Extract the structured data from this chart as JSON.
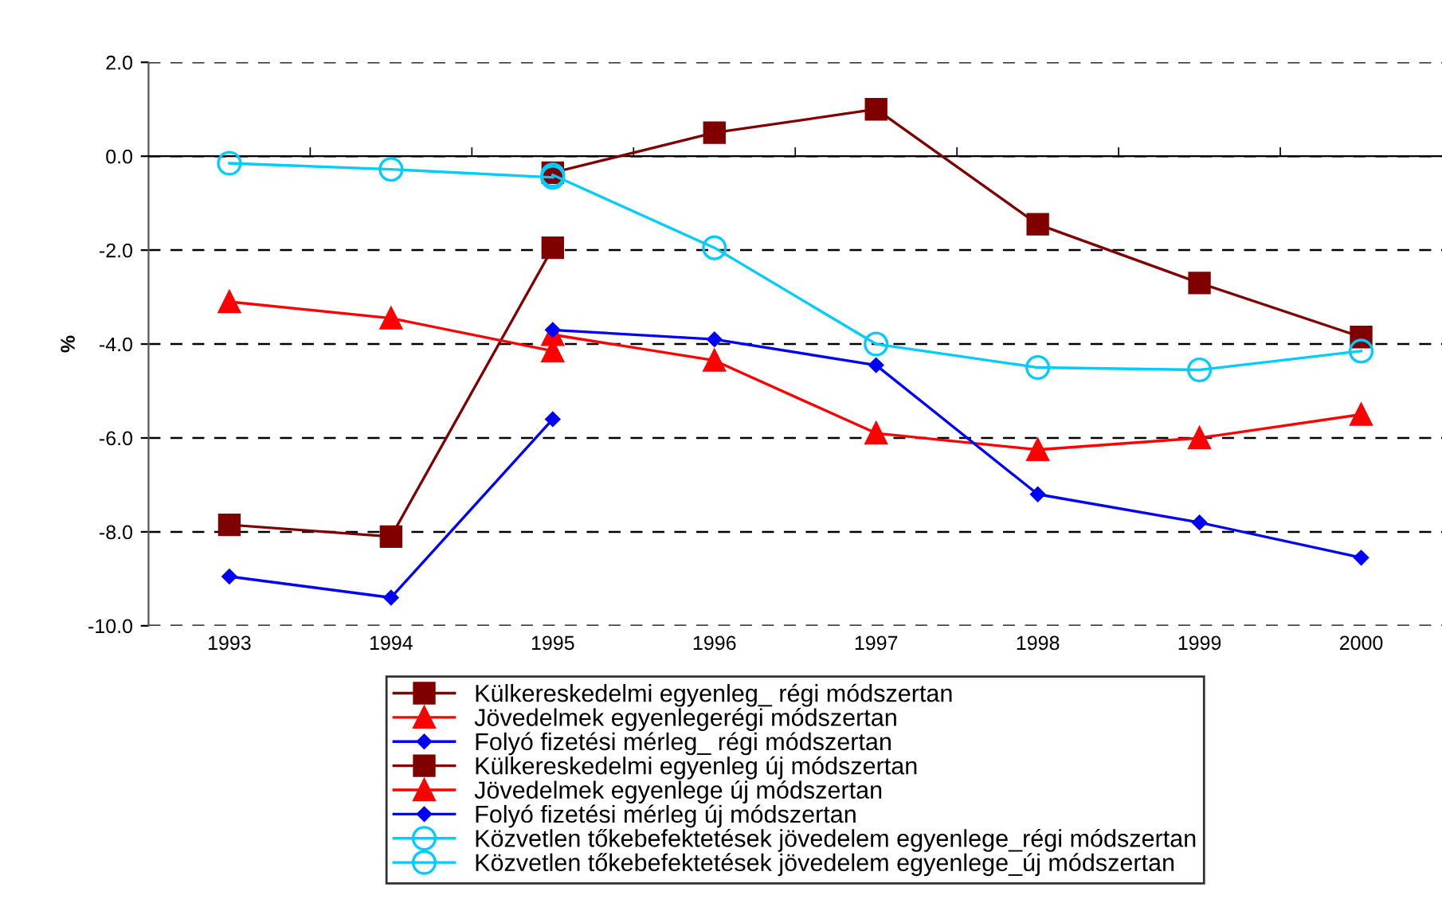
{
  "chart_data": {
    "type": "line",
    "ylabel": "%",
    "categories": [
      "1993",
      "1994",
      "1995",
      "1996",
      "1997",
      "1998",
      "1999",
      "2000"
    ],
    "ylim": [
      -10,
      2
    ],
    "yticks": [
      {
        "value": -10,
        "label": "-10.0"
      },
      {
        "value": -8,
        "label": "-8.0"
      },
      {
        "value": -6,
        "label": "-6.0"
      },
      {
        "value": -4,
        "label": "-4.0"
      },
      {
        "value": -2,
        "label": "-2.0"
      },
      {
        "value": 0,
        "label": "0.0"
      },
      {
        "value": 2,
        "label": "2.0"
      }
    ],
    "grid": "y",
    "legend": "bottom",
    "series": [
      {
        "name": "Külkereskedelmi egyenleg_ régi módszertan",
        "color": "#800000",
        "marker": "square",
        "values": [
          -7.85,
          -8.1,
          -1.95,
          null,
          null,
          null,
          null,
          null
        ]
      },
      {
        "name": "Jövedelmek egyenlegerégi módszertan",
        "color": "#ff0000",
        "marker": "triangle",
        "values": [
          -3.1,
          -3.45,
          -4.15,
          null,
          null,
          null,
          null,
          null
        ]
      },
      {
        "name": "Folyó fizetési mérleg_ régi módszertan",
        "color": "#0000ff",
        "marker": "diamond",
        "values": [
          -8.95,
          -9.4,
          -5.6,
          null,
          null,
          null,
          null,
          null
        ]
      },
      {
        "name": "Külkereskedelmi egyenleg új módszertan",
        "color": "#800000",
        "marker": "square",
        "values": [
          null,
          null,
          -0.35,
          0.5,
          1.0,
          -1.45,
          -2.7,
          -3.85
        ]
      },
      {
        "name": "Jövedelmek egyenlege új módszertan",
        "color": "#ff0000",
        "marker": "triangle",
        "values": [
          null,
          null,
          -3.8,
          -4.35,
          -5.9,
          -6.25,
          -6.0,
          -5.5
        ]
      },
      {
        "name": "Folyó fizetési mérleg új módszertan",
        "color": "#0000ff",
        "marker": "diamond",
        "values": [
          null,
          null,
          -3.7,
          -3.9,
          -4.45,
          -7.2,
          -7.8,
          -8.55
        ]
      },
      {
        "name": "Közvetlen tőkebefektetések jövedelem egyenlege_régi módszertan",
        "color": "#00ccff",
        "marker": "circle",
        "values": [
          -0.15,
          -0.28,
          -0.45,
          null,
          null,
          null,
          null,
          null
        ]
      },
      {
        "name": "Közvetlen tőkebefektetések jövedelem egyenlege_új módszertan",
        "color": "#00ccff",
        "marker": "circle",
        "values": [
          null,
          null,
          -0.4,
          -1.95,
          -4.0,
          -4.5,
          -4.55,
          -4.15
        ]
      }
    ]
  }
}
